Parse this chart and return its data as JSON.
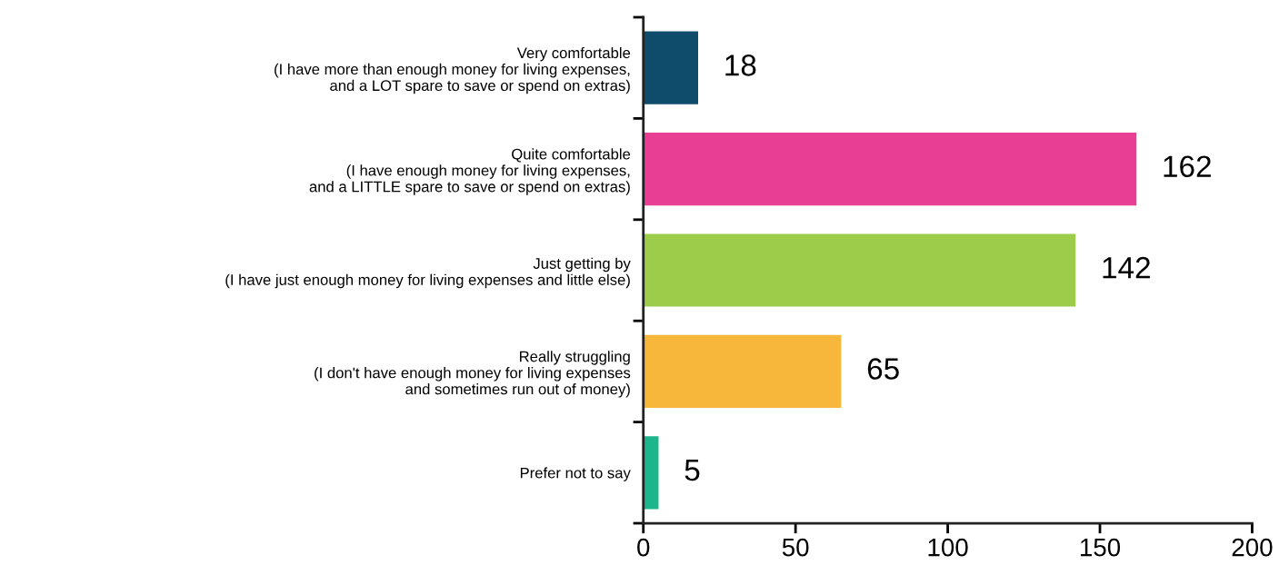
{
  "chart_data": {
    "type": "bar",
    "orientation": "horizontal",
    "categories": [
      "Very comfortable\n(I have more than enough money for living expenses,\nand a LOT spare to save or spend on extras)",
      "Quite comfortable\n(I have enough money for living expenses,\nand a LITTLE spare to save or spend on extras)",
      "Just getting by\n(I have just enough money for living expenses and little else)",
      "Really struggling\n(I don't have enough money for living expenses\nand sometimes run out of money)",
      "Prefer not to say"
    ],
    "values": [
      18,
      162,
      142,
      65,
      5
    ],
    "colors": [
      "#0f4c6b",
      "#e83e93",
      "#9ccc4a",
      "#f7b73a",
      "#1db58b"
    ],
    "xlim": [
      0,
      200
    ],
    "xticks": [
      0,
      50,
      100,
      150,
      200
    ],
    "data_labels": true,
    "grid": false,
    "legend": false
  }
}
